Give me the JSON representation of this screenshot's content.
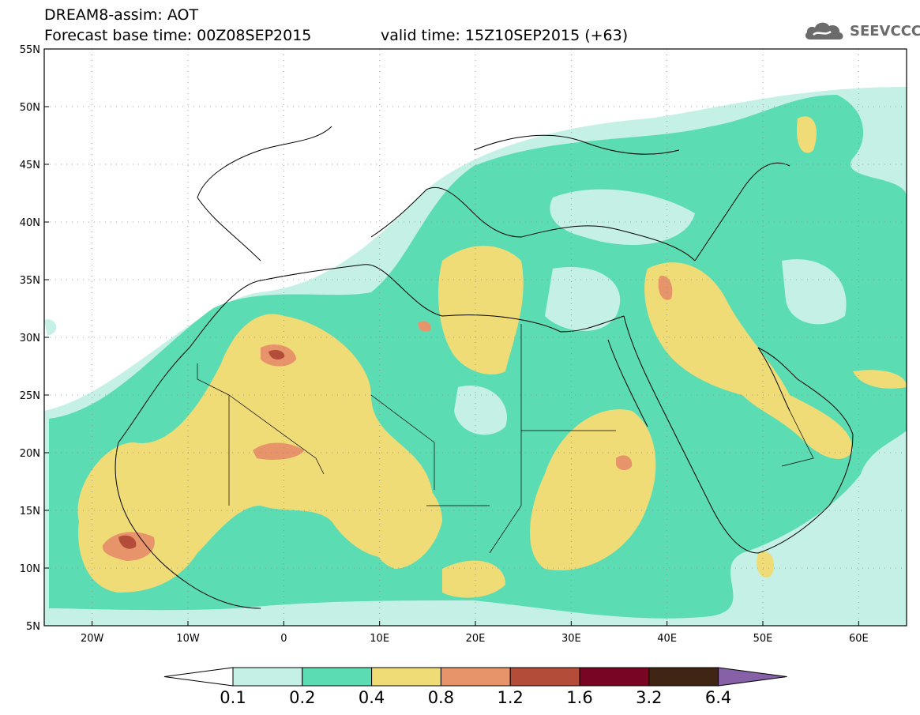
{
  "title": {
    "product": "DREAM8-assim: AOT",
    "base_time": "Forecast base time: 00Z08SEP2015",
    "valid_time": "valid time: 15Z10SEP2015 (+63)"
  },
  "logo": {
    "text": "SEEVCCC",
    "icon": "cloud-logo-icon"
  },
  "map": {
    "lon_range": [
      -25,
      65
    ],
    "lat_range": [
      5,
      55
    ],
    "lon_ticks": [
      {
        "lon": -20,
        "label": "20W"
      },
      {
        "lon": -10,
        "label": "10W"
      },
      {
        "lon": 0,
        "label": "0"
      },
      {
        "lon": 10,
        "label": "10E"
      },
      {
        "lon": 20,
        "label": "20E"
      },
      {
        "lon": 30,
        "label": "30E"
      },
      {
        "lon": 40,
        "label": "40E"
      },
      {
        "lon": 50,
        "label": "50E"
      },
      {
        "lon": 60,
        "label": "60E"
      }
    ],
    "lat_ticks": [
      {
        "lat": 55,
        "label": "55N"
      },
      {
        "lat": 50,
        "label": "50N"
      },
      {
        "lat": 45,
        "label": "45N"
      },
      {
        "lat": 40,
        "label": "40N"
      },
      {
        "lat": 35,
        "label": "35N"
      },
      {
        "lat": 30,
        "label": "30N"
      },
      {
        "lat": 25,
        "label": "25N"
      },
      {
        "lat": 20,
        "label": "20N"
      },
      {
        "lat": 15,
        "label": "15N"
      },
      {
        "lat": 10,
        "label": "10N"
      },
      {
        "lat": 5,
        "label": "5N"
      }
    ],
    "grid": true
  },
  "colorbar": {
    "colors": [
      "#ffffff",
      "#c4f0e6",
      "#5bdcb3",
      "#f0dc76",
      "#e8946a",
      "#b34c38",
      "#780522",
      "#402515",
      "#8661a8"
    ],
    "labels": [
      "0.1",
      "0.2",
      "0.4",
      "0.8",
      "1.2",
      "1.6",
      "3.2",
      "6.4"
    ]
  },
  "fields": {
    "c_light": "#c4f0e6",
    "c_green": "#5bdcb3",
    "c_yellow": "#f0dc76",
    "c_orange": "#e8946a",
    "c_red": "#b34c38"
  }
}
